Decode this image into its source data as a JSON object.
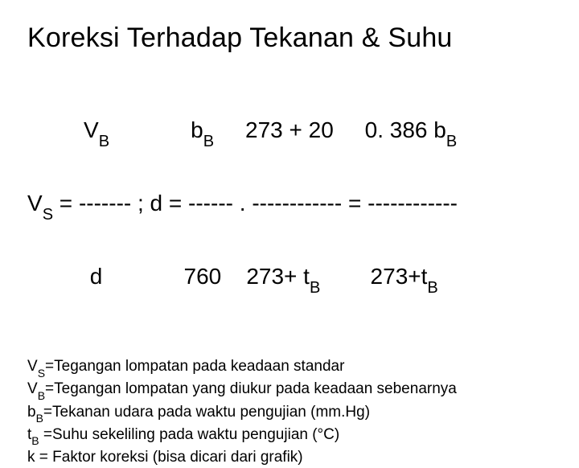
{
  "title": "Koreksi Terhadap Tekanan & Suhu",
  "formula": {
    "line1": {
      "t1": "         V",
      "s1": "B",
      "t2": "             b",
      "s2": "B",
      "t3": "     273 + 20     0. 386 b",
      "s3": "B"
    },
    "line2": {
      "t1": "V",
      "s1": "S",
      "t2": " = ------- ; d = ------ . ------------ = ------------"
    },
    "line3": {
      "t1": "          d             760    273+ t",
      "s1": "B",
      "t2": "        273+t",
      "s2": "B"
    }
  },
  "defs": {
    "d1": {
      "pre": "V",
      "sub": "S",
      "post": "=Tegangan lompatan pada keadaan standar"
    },
    "d2": {
      "pre": "V",
      "sub": "B",
      "post": "=Tegangan lompatan yang diukur pada keadaan sebenarnya"
    },
    "d3": {
      "pre": "b",
      "sub": "B",
      "post": "=Tekanan udara pada waktu pengujian (mm.Hg)"
    },
    "d4": {
      "pre": "t",
      "sub": "B",
      "post": " =Suhu sekeliling pada waktu pengujian (°C)"
    },
    "d5": {
      "pre": "k = Faktor koreksi (bisa dicari dari grafik)"
    }
  }
}
